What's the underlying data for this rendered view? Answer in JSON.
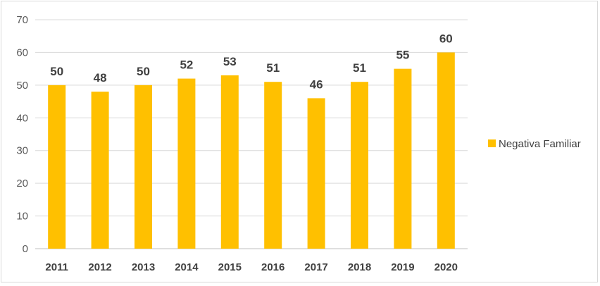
{
  "chart_data": {
    "type": "bar",
    "categories": [
      "2011",
      "2012",
      "2013",
      "2014",
      "2015",
      "2016",
      "2017",
      "2018",
      "2019",
      "2020"
    ],
    "series": [
      {
        "name": "Negativa Familiar",
        "values": [
          50,
          48,
          50,
          52,
          53,
          51,
          46,
          51,
          55,
          60
        ],
        "color": "#FFC000"
      }
    ],
    "ylim": [
      0,
      70
    ],
    "yticks": [
      0,
      10,
      20,
      30,
      40,
      50,
      60,
      70
    ],
    "grid": true,
    "legend_position": "right",
    "data_labels": true
  }
}
